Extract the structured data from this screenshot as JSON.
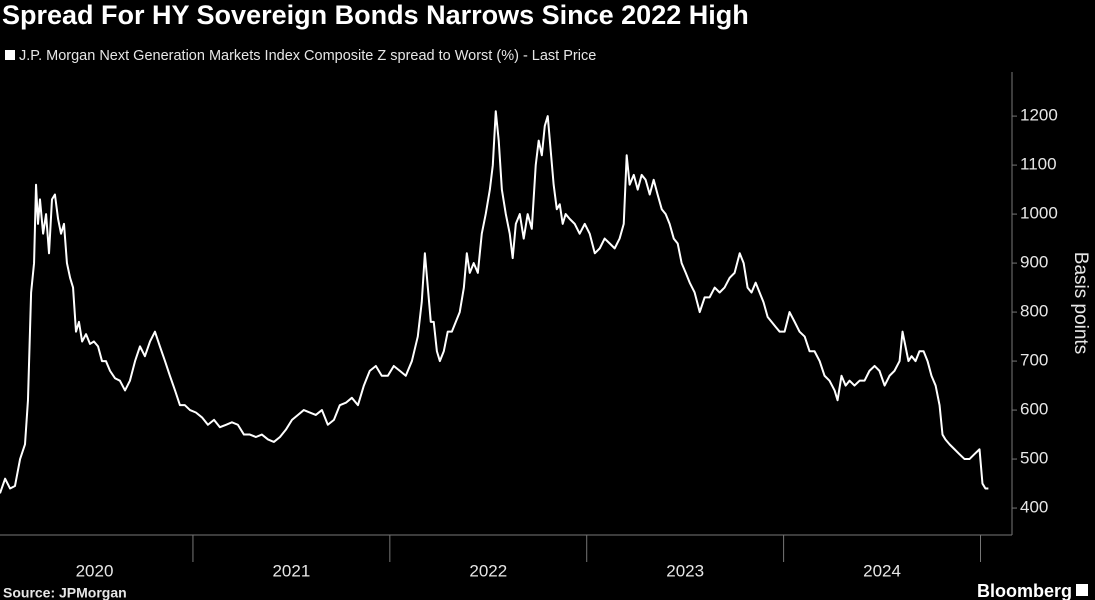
{
  "chart_data": {
    "type": "line",
    "title": "Spread For HY Sovereign Bonds Narrows Since 2022 High",
    "subtitle": "J.P. Morgan Next Generation Markets Index Composite Z spread to Worst (%) - Last Price",
    "y_label": "Basis points",
    "source": "Source: JPMorgan",
    "brand": "Bloomberg",
    "xlim": [
      2020.02,
      2025.16
    ],
    "xticks": [
      {
        "value": 2020.5,
        "label": "2020"
      },
      {
        "value": 2021.5,
        "label": "2021"
      },
      {
        "value": 2022.5,
        "label": "2022"
      },
      {
        "value": 2023.5,
        "label": "2023"
      },
      {
        "value": 2024.5,
        "label": "2024"
      }
    ],
    "ylim": [
      345,
      1290
    ],
    "yticks": [
      400,
      500,
      600,
      700,
      800,
      900,
      1000,
      1100,
      1200
    ],
    "series": [
      {
        "name": "J.P. Morgan Next Generation Markets Index Composite Z spread to Worst (%) - Last Price",
        "color": "#ffffff",
        "x": [
          2020.02,
          2020.046,
          2020.071,
          2020.096,
          2020.122,
          2020.147,
          2020.162,
          2020.178,
          2020.193,
          2020.203,
          2020.213,
          2020.223,
          2020.239,
          2020.254,
          2020.269,
          2020.284,
          2020.299,
          2020.315,
          2020.33,
          2020.345,
          2020.36,
          2020.376,
          2020.391,
          2020.406,
          2020.421,
          2020.437,
          2020.457,
          2020.477,
          2020.497,
          2020.518,
          2020.538,
          2020.558,
          2020.579,
          2020.604,
          2020.629,
          2020.655,
          2020.68,
          2020.706,
          2020.731,
          2020.756,
          2020.782,
          2020.807,
          2020.832,
          2020.858,
          2020.883,
          2020.909,
          2020.934,
          2020.959,
          2020.985,
          2021.015,
          2021.046,
          2021.076,
          2021.107,
          2021.137,
          2021.168,
          2021.198,
          2021.228,
          2021.259,
          2021.289,
          2021.32,
          2021.35,
          2021.381,
          2021.411,
          2021.442,
          2021.472,
          2021.503,
          2021.533,
          2021.563,
          2021.594,
          2021.624,
          2021.655,
          2021.685,
          2021.716,
          2021.746,
          2021.777,
          2021.807,
          2021.838,
          2021.868,
          2021.898,
          2021.929,
          2021.959,
          2021.99,
          2022.02,
          2022.051,
          2022.081,
          2022.112,
          2022.142,
          2022.162,
          2022.178,
          2022.193,
          2022.208,
          2022.223,
          2022.239,
          2022.254,
          2022.274,
          2022.294,
          2022.315,
          2022.335,
          2022.355,
          2022.376,
          2022.391,
          2022.406,
          2022.426,
          2022.447,
          2022.467,
          2022.487,
          2022.508,
          2022.523,
          2022.538,
          2022.553,
          2022.569,
          2022.589,
          2022.609,
          2022.624,
          2022.64,
          2022.66,
          2022.68,
          2022.7,
          2022.721,
          2022.741,
          2022.756,
          2022.772,
          2022.787,
          2022.802,
          2022.817,
          2022.832,
          2022.848,
          2022.863,
          2022.878,
          2022.893,
          2022.914,
          2022.939,
          2022.964,
          2022.99,
          2023.015,
          2023.041,
          2023.066,
          2023.091,
          2023.117,
          2023.142,
          2023.167,
          2023.188,
          2023.203,
          2023.218,
          2023.239,
          2023.259,
          2023.279,
          2023.299,
          2023.32,
          2023.34,
          2023.36,
          2023.381,
          2023.401,
          2023.421,
          2023.442,
          2023.462,
          2023.482,
          2023.503,
          2023.523,
          2023.548,
          2023.574,
          2023.599,
          2023.624,
          2023.65,
          2023.675,
          2023.7,
          2023.726,
          2023.751,
          2023.777,
          2023.797,
          2023.817,
          2023.837,
          2023.858,
          2023.878,
          2023.898,
          2023.919,
          2023.939,
          2023.959,
          2023.98,
          2024.005,
          2024.03,
          2024.056,
          2024.081,
          2024.107,
          2024.132,
          2024.157,
          2024.183,
          2024.208,
          2024.233,
          2024.259,
          2024.274,
          2024.294,
          2024.315,
          2024.335,
          2024.36,
          2024.386,
          2024.411,
          2024.436,
          2024.462,
          2024.487,
          2024.513,
          2024.538,
          2024.563,
          2024.589,
          2024.604,
          2024.619,
          2024.634,
          2024.65,
          2024.67,
          2024.69,
          2024.711,
          2024.731,
          2024.751,
          2024.772,
          2024.792,
          2024.807,
          2024.822,
          2024.843,
          2024.868,
          2024.893,
          2024.919,
          2024.944,
          2024.969,
          2024.995,
          2025.01,
          2025.025,
          2025.04
        ],
        "values": [
          430,
          460,
          440,
          445,
          500,
          530,
          620,
          840,
          900,
          1060,
          980,
          1030,
          960,
          1000,
          920,
          1030,
          1040,
          990,
          960,
          980,
          900,
          870,
          850,
          760,
          780,
          740,
          755,
          735,
          740,
          730,
          700,
          700,
          680,
          665,
          660,
          640,
          660,
          700,
          730,
          710,
          740,
          760,
          730,
          700,
          670,
          640,
          610,
          610,
          600,
          595,
          585,
          570,
          580,
          565,
          570,
          575,
          570,
          550,
          550,
          545,
          550,
          540,
          535,
          545,
          560,
          580,
          590,
          600,
          595,
          590,
          600,
          570,
          580,
          610,
          615,
          625,
          610,
          650,
          680,
          690,
          670,
          670,
          690,
          680,
          670,
          700,
          750,
          820,
          920,
          850,
          780,
          780,
          720,
          700,
          720,
          760,
          760,
          780,
          800,
          850,
          920,
          880,
          900,
          880,
          960,
          1000,
          1050,
          1100,
          1210,
          1150,
          1050,
          1000,
          960,
          910,
          980,
          1000,
          950,
          1000,
          970,
          1100,
          1150,
          1120,
          1180,
          1200,
          1130,
          1060,
          1010,
          1020,
          980,
          1000,
          990,
          980,
          960,
          980,
          960,
          920,
          930,
          950,
          940,
          930,
          950,
          980,
          1120,
          1060,
          1080,
          1050,
          1080,
          1070,
          1040,
          1070,
          1040,
          1010,
          1000,
          980,
          950,
          940,
          900,
          880,
          860,
          840,
          800,
          830,
          830,
          850,
          840,
          850,
          870,
          880,
          920,
          900,
          850,
          840,
          860,
          840,
          820,
          790,
          780,
          770,
          760,
          760,
          800,
          780,
          760,
          750,
          720,
          720,
          700,
          670,
          660,
          640,
          620,
          670,
          650,
          660,
          650,
          660,
          660,
          680,
          690,
          680,
          650,
          670,
          680,
          700,
          760,
          730,
          700,
          710,
          700,
          720,
          720,
          700,
          670,
          650,
          610,
          550,
          540,
          530,
          520,
          510,
          500,
          500,
          510,
          520,
          450,
          440,
          440
        ]
      }
    ]
  }
}
